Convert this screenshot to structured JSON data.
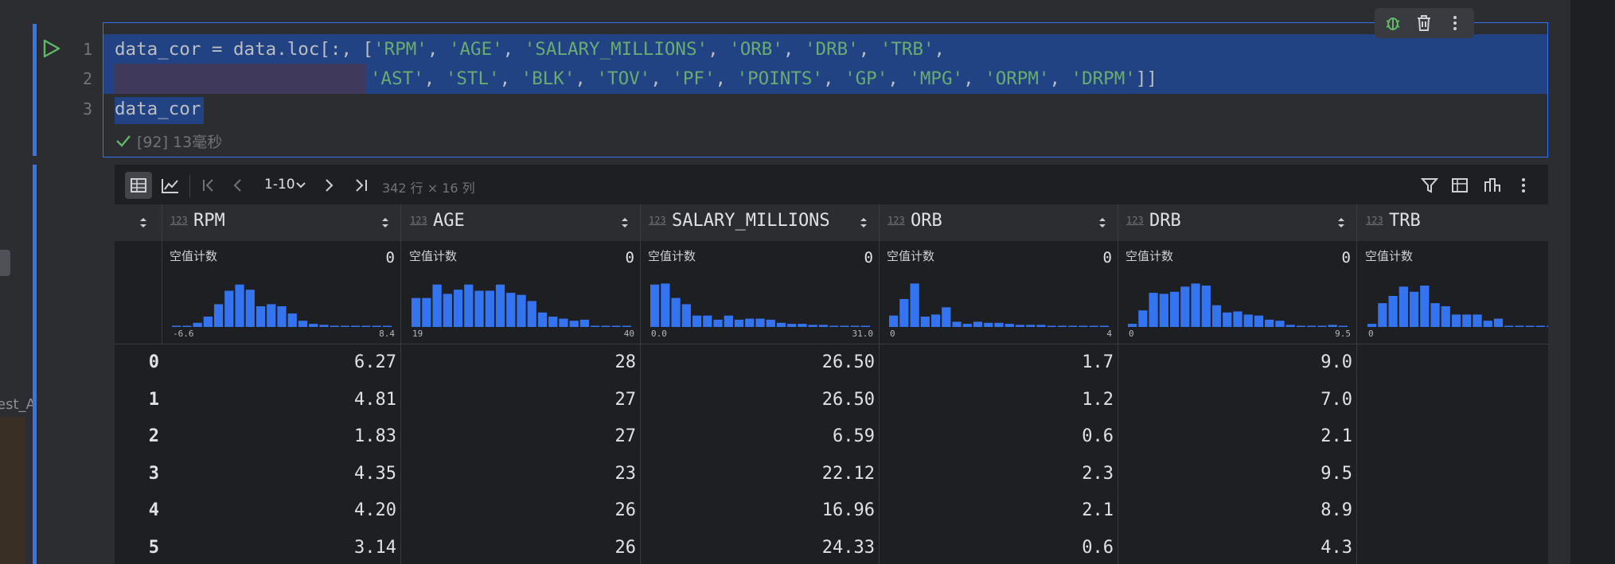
{
  "editor": {
    "line_numbers": [
      "1",
      "2",
      "3"
    ],
    "code": [
      [
        "data_cor = data.loc[:, [",
        "'RPM'",
        ", ",
        "'AGE'",
        ", ",
        "'SALARY_MILLIONS'",
        ", ",
        "'ORB'",
        ", ",
        "'DRB'",
        ", ",
        "'TRB'",
        ","
      ],
      [
        "'AST'",
        ", ",
        "'STL'",
        ", ",
        "'BLK'",
        ", ",
        "'TOV'",
        ", ",
        "'PF'",
        ", ",
        "'POINTS'",
        ", ",
        "'GP'",
        ", ",
        "'MPG'",
        ", ",
        "'ORPM'",
        ", ",
        "'DRPM'",
        "]]"
      ],
      [
        "data_cor"
      ]
    ],
    "status": "[92] 13毫秒"
  },
  "sidebar": {
    "label": "est_A"
  },
  "output": {
    "page_range": "1-10",
    "shape": "342 行 × 16 列",
    "columns": [
      {
        "type_icon": "123",
        "name": "RPM",
        "null_label": "空值计数",
        "null_count": 0,
        "range_min": "-6.6",
        "range_max": "8.4",
        "hist": [
          1,
          1,
          4,
          10,
          22,
          35,
          41,
          36,
          20,
          22,
          20,
          13,
          6,
          3,
          2,
          1,
          1,
          1,
          1,
          1,
          1
        ]
      },
      {
        "type_icon": "123",
        "name": "AGE",
        "null_label": "空值计数",
        "null_count": 0,
        "range_min": "19",
        "range_max": "40",
        "hist": [
          28,
          28,
          41,
          32,
          36,
          41,
          35,
          35,
          41,
          33,
          31,
          25,
          14,
          10,
          8,
          6,
          7,
          0,
          0,
          1,
          1
        ]
      },
      {
        "type_icon": "123",
        "name": "SALARY_MILLIONS",
        "null_label": "空值计数",
        "null_count": 0,
        "range_min": "0.0",
        "range_max": "31.0",
        "hist": [
          41,
          42,
          28,
          22,
          11,
          11,
          7,
          11,
          7,
          8,
          8,
          7,
          4,
          3,
          3,
          2,
          2,
          1,
          1,
          1,
          1
        ]
      },
      {
        "type_icon": "123",
        "name": "ORB",
        "null_label": "空值计数",
        "null_count": 0,
        "range_min": "0",
        "range_max": "4",
        "hist": [
          11,
          27,
          42,
          10,
          12,
          19,
          5,
          3,
          5,
          4,
          4,
          3,
          2,
          2,
          2,
          1,
          1,
          1,
          1,
          1,
          1
        ]
      },
      {
        "type_icon": "123",
        "name": "DRB",
        "null_label": "空值计数",
        "null_count": 0,
        "range_min": "0",
        "range_max": "9.5",
        "hist": [
          3,
          16,
          33,
          32,
          34,
          39,
          42,
          40,
          21,
          14,
          15,
          12,
          11,
          7,
          6,
          2,
          1,
          1,
          1,
          2,
          1
        ]
      },
      {
        "type_icon": "123",
        "name": "TRB",
        "null_label": "空值计数",
        "range_min": "0",
        "hist": [
          3,
          23,
          30,
          39,
          34,
          40,
          23,
          20,
          12,
          12,
          12,
          6,
          8,
          1,
          1,
          1,
          1,
          1,
          1,
          1,
          1
        ]
      }
    ],
    "rows": [
      {
        "index": "0",
        "cells": [
          "6.27",
          "28",
          "26.50",
          "1.7",
          "9.0"
        ]
      },
      {
        "index": "1",
        "cells": [
          "4.81",
          "27",
          "26.50",
          "1.2",
          "7.0"
        ]
      },
      {
        "index": "2",
        "cells": [
          "1.83",
          "27",
          "6.59",
          "0.6",
          "2.1"
        ]
      },
      {
        "index": "3",
        "cells": [
          "4.35",
          "23",
          "22.12",
          "2.3",
          "9.5"
        ]
      },
      {
        "index": "4",
        "cells": [
          "4.20",
          "26",
          "16.96",
          "2.1",
          "8.9"
        ]
      },
      {
        "index": "5",
        "cells": [
          "3.14",
          "26",
          "24.33",
          "0.6",
          "4.3"
        ]
      }
    ]
  }
}
